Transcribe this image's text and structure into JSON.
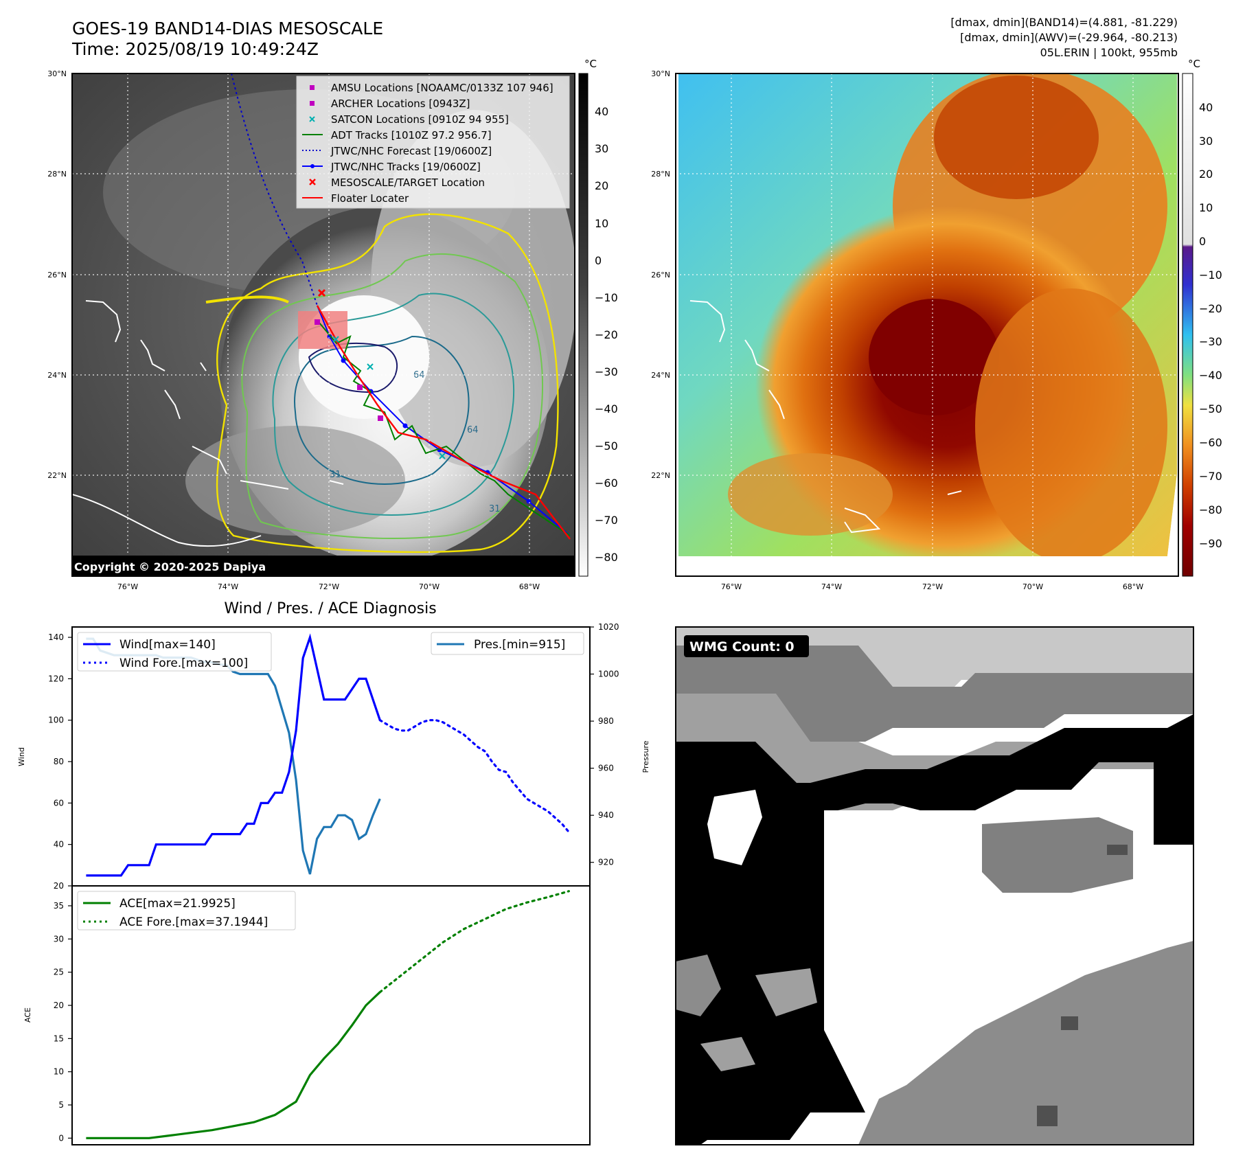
{
  "header": {
    "title_line1": "GOES-19 BAND14-DIAS MESOSCALE",
    "title_line2": "Time: 2025/08/19 10:49:24Z",
    "right_line1": "[dmax, dmin](BAND14)=(4.881, -81.229)",
    "right_line2": "[dmax, dmin](AWV)=(-29.964, -80.213)",
    "right_line3": "05L.ERIN | 100kt, 955mb"
  },
  "map_axes": {
    "lat_labels": [
      "30°N",
      "28°N",
      "26°N",
      "24°N",
      "22°N"
    ],
    "lon_labels": [
      "76°W",
      "74°W",
      "72°W",
      "70°W",
      "68°W"
    ]
  },
  "ir_map": {
    "copyright": "Copyright © 2020-2025 Dapiya",
    "colorbar_unit": "°C",
    "colorbar_ticks": [
      "40",
      "30",
      "20",
      "10",
      "0",
      "−10",
      "−20",
      "−30",
      "−40",
      "−50",
      "−60",
      "−70",
      "−80"
    ],
    "contour_labels": [
      "64",
      "64",
      "31",
      "31"
    ],
    "legend": [
      {
        "label": "AMSU Locations [NOAAMC/0133Z 107 946]",
        "color": "#c000c0",
        "marker": "square"
      },
      {
        "label": "ARCHER Locations [0943Z]",
        "color": "#c000c0",
        "marker": "square"
      },
      {
        "label": "SATCON Locations [0910Z 94 955]",
        "color": "#00b0b0",
        "marker": "x"
      },
      {
        "label": "ADT Tracks [1010Z 97.2 956.7]",
        "color": "#008000",
        "marker": "line"
      },
      {
        "label": "JTWC/NHC Forecast [19/0600Z]",
        "color": "#0000cc",
        "marker": "dotted"
      },
      {
        "label": "JTWC/NHC Tracks [19/0600Z]",
        "color": "#0000ff",
        "marker": "line-dot"
      },
      {
        "label": "MESOSCALE/TARGET Location",
        "color": "#ff0000",
        "marker": "x"
      },
      {
        "label": "Floater Locater",
        "color": "#ff0000",
        "marker": "line"
      }
    ]
  },
  "awv_map": {
    "colorbar_unit": "°C",
    "colorbar_ticks": [
      "40",
      "30",
      "20",
      "10",
      "0",
      "−10",
      "−20",
      "−30",
      "−40",
      "−50",
      "−60",
      "−70",
      "−80",
      "−90"
    ]
  },
  "wmg": {
    "label": "WMG Count: 0"
  },
  "chart_data": [
    {
      "type": "line",
      "title": "Wind / Pres. / ACE Diagnosis",
      "ylabel": "Wind",
      "ylabel_right": "Pressure",
      "ylim": [
        20,
        145
      ],
      "ylim_right": [
        910,
        1020
      ],
      "yticks": [
        "140",
        "120",
        "100",
        "80",
        "60",
        "40",
        "20"
      ],
      "yticks_right": [
        "1020",
        "1000",
        "980",
        "960",
        "940",
        "920"
      ],
      "x": [
        0,
        1,
        2,
        3,
        4,
        5,
        6,
        7,
        8,
        9,
        10,
        11,
        12,
        13,
        14,
        15,
        16,
        17,
        18,
        19,
        20,
        21,
        22,
        23,
        24,
        25,
        26,
        27,
        28,
        29,
        30,
        31,
        32,
        33,
        34,
        35,
        36,
        37,
        38,
        39,
        40,
        41,
        42,
        43,
        44,
        45,
        46,
        47,
        48,
        49,
        50,
        51,
        52,
        53,
        54,
        55,
        56,
        57,
        58,
        59,
        60,
        61,
        62,
        63,
        64,
        65,
        66
      ],
      "series": [
        {
          "name": "Wind[max=140]",
          "color": "#0000ff",
          "style": "solid",
          "x": [
            0,
            1,
            2,
            3,
            4,
            5,
            6,
            7,
            8,
            9,
            10,
            11,
            12,
            13,
            14,
            15,
            16,
            17,
            18,
            19,
            20,
            21,
            22,
            23,
            24,
            25,
            26,
            27,
            28,
            29,
            30,
            31,
            32,
            33,
            34,
            35,
            36,
            37,
            38,
            39,
            40,
            41,
            42
          ],
          "values": [
            25,
            25,
            25,
            25,
            25,
            25,
            30,
            30,
            30,
            30,
            40,
            40,
            40,
            40,
            40,
            40,
            40,
            40,
            45,
            45,
            45,
            45,
            45,
            50,
            50,
            60,
            60,
            65,
            65,
            75,
            95,
            130,
            140,
            125,
            110,
            110,
            110,
            110,
            115,
            120,
            120,
            110,
            100
          ]
        },
        {
          "name": "Wind Fore.[max=100]",
          "color": "#0000ff",
          "style": "dotted",
          "x": [
            42,
            43,
            44,
            45,
            46,
            47,
            48,
            49,
            50,
            51,
            52,
            53,
            54,
            55,
            56,
            57,
            58,
            59,
            60,
            61,
            62,
            63,
            64,
            65,
            66,
            67,
            68,
            69
          ],
          "values": [
            100,
            98,
            96,
            95,
            95,
            97,
            99,
            100,
            100,
            99,
            97,
            95,
            93,
            90,
            87,
            85,
            80,
            76,
            75,
            70,
            66,
            62,
            60,
            58,
            56,
            53,
            50,
            46
          ]
        },
        {
          "name": "Pres.[min=915]",
          "color": "#1f77b4",
          "style": "solid",
          "axis": "right",
          "x": [
            0,
            1,
            2,
            3,
            4,
            5,
            6,
            7,
            8,
            9,
            10,
            11,
            12,
            13,
            14,
            15,
            16,
            17,
            18,
            19,
            20,
            21,
            22,
            23,
            24,
            25,
            26,
            27,
            28,
            29,
            30,
            31,
            32,
            33,
            34,
            35,
            36,
            37,
            38,
            39,
            40,
            41,
            42
          ],
          "values": [
            1015,
            1015,
            1010,
            1009,
            1008,
            1008,
            1008,
            1008,
            1008,
            1008,
            1008,
            1007,
            1007,
            1007,
            1007,
            1007,
            1006,
            1005,
            1005,
            1004,
            1004,
            1001,
            1000,
            1000,
            1000,
            1000,
            1000,
            995,
            985,
            975,
            955,
            925,
            915,
            930,
            935,
            935,
            940,
            940,
            938,
            930,
            932,
            940,
            947
          ]
        }
      ]
    },
    {
      "type": "line",
      "ylabel": "ACE",
      "ylim": [
        -1,
        38
      ],
      "yticks": [
        "35",
        "30",
        "25",
        "20",
        "15",
        "10",
        "5",
        "0"
      ],
      "series": [
        {
          "name": "ACE[max=21.9925]",
          "color": "#008000",
          "style": "solid",
          "x": [
            0,
            3,
            6,
            9,
            12,
            15,
            18,
            21,
            24,
            27,
            30,
            32,
            34,
            36,
            38,
            40,
            42
          ],
          "values": [
            0,
            0,
            0,
            0,
            0.4,
            0.8,
            1.2,
            1.8,
            2.4,
            3.5,
            5.5,
            9.5,
            12.0,
            14.2,
            17.0,
            20.0,
            22.0
          ]
        },
        {
          "name": "ACE Fore.[max=37.1944]",
          "color": "#008000",
          "style": "dotted",
          "x": [
            42,
            45,
            48,
            51,
            54,
            57,
            60,
            63,
            66,
            69
          ],
          "values": [
            22.0,
            24.5,
            27.0,
            29.5,
            31.5,
            33.0,
            34.5,
            35.5,
            36.3,
            37.2
          ]
        }
      ]
    }
  ],
  "diag_xlim": [
    -2,
    72
  ]
}
